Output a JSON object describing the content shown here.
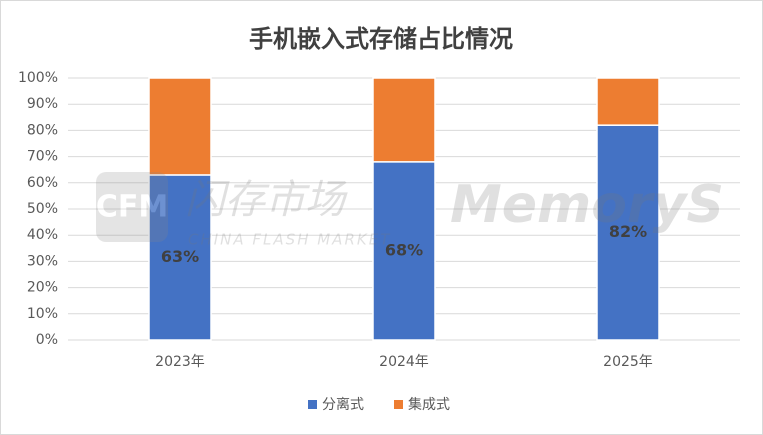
{
  "chart_data": {
    "type": "stacked_bar",
    "title": "手机嵌入式存储占比情况",
    "categories": [
      "2023年",
      "2024年",
      "2025年"
    ],
    "series": [
      {
        "name": "分离式",
        "color": "#4472c4",
        "values": [
          63,
          68,
          82
        ],
        "value_labels": [
          "63%",
          "68%",
          "82%"
        ]
      },
      {
        "name": "集成式",
        "color": "#ed7d31",
        "values": [
          37,
          32,
          18
        ]
      }
    ],
    "ylim": [
      0,
      100
    ],
    "yticks": [
      {
        "value": 0,
        "label": "0%"
      },
      {
        "value": 10,
        "label": "10%"
      },
      {
        "value": 20,
        "label": "20%"
      },
      {
        "value": 30,
        "label": "30%"
      },
      {
        "value": 40,
        "label": "40%"
      },
      {
        "value": 50,
        "label": "50%"
      },
      {
        "value": 60,
        "label": "60%"
      },
      {
        "value": 70,
        "label": "70%"
      },
      {
        "value": 80,
        "label": "80%"
      },
      {
        "value": 90,
        "label": "90%"
      },
      {
        "value": 100,
        "label": "100%"
      }
    ],
    "grid": true,
    "legend": "bottom",
    "watermark": [
      "CFM",
      "闪存市场",
      "CHINA FLASH MARKET",
      "MemoryS"
    ]
  }
}
